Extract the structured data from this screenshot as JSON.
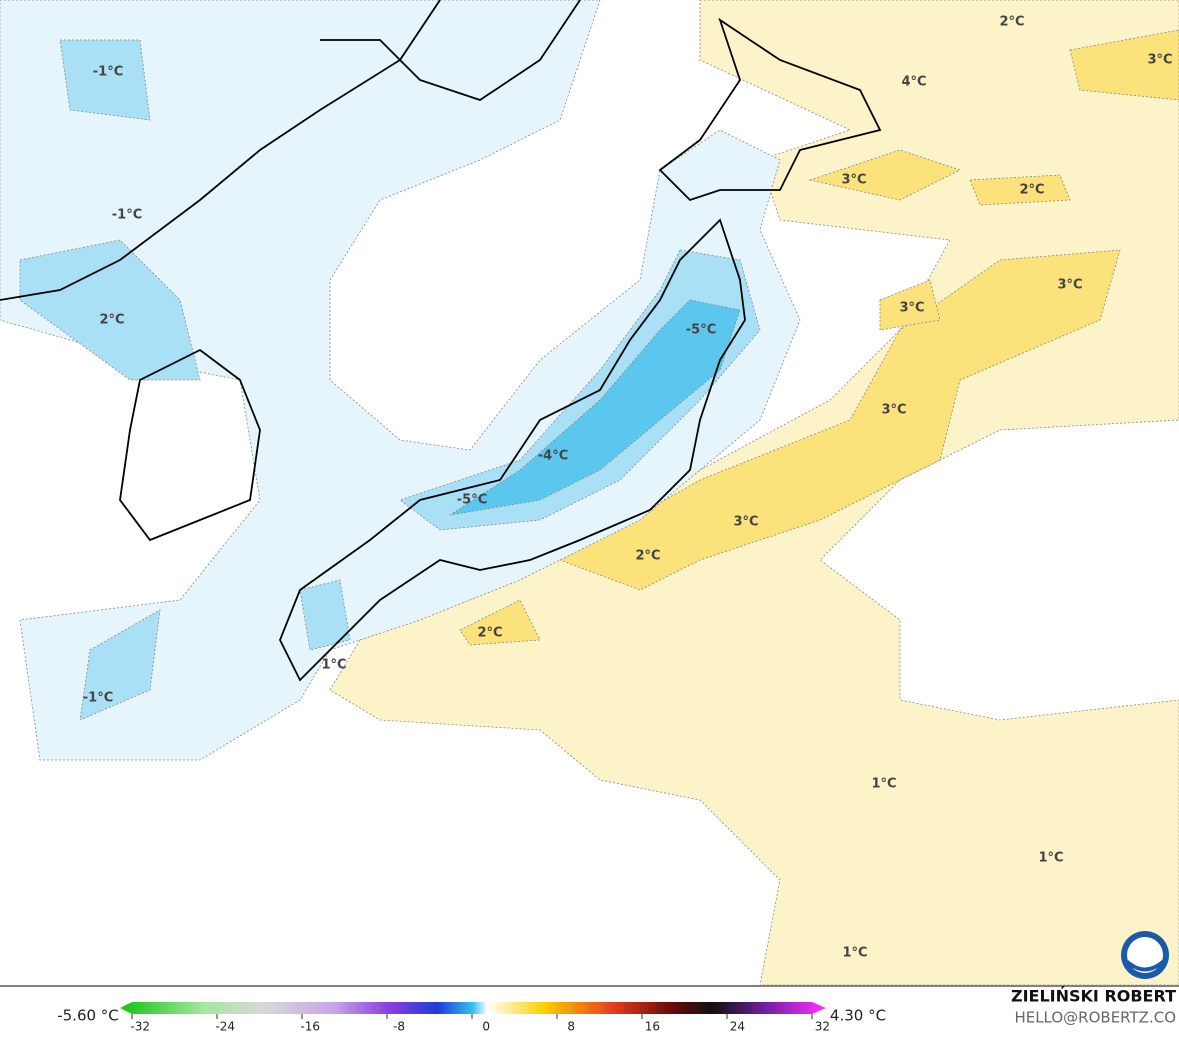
{
  "map_labels": [
    "-1°C",
    "-1°C",
    "2°C",
    "2°C",
    "3°C",
    "4°C",
    "3°C",
    "2°C",
    "3°C",
    "3°C",
    "-5°C",
    "3°C",
    "-4°C",
    "-5°C",
    "3°C",
    "2°C",
    "2°C",
    "1°C",
    "-1°C",
    "1°C",
    "1°C",
    "1°C"
  ],
  "colorbar": {
    "min_label": "-5.60 °C",
    "max_label": "4.30 °C",
    "range": [
      -32,
      32
    ],
    "ticks": [
      -32,
      -24,
      -16,
      -8,
      0,
      8,
      16,
      24,
      32
    ]
  },
  "credit": {
    "author": "ZIELIŃSKI ROBERT",
    "email": "HELLO@ROBERTZ.CO"
  }
}
